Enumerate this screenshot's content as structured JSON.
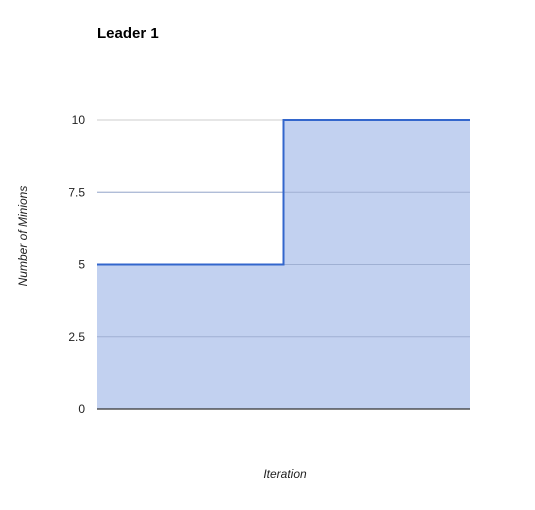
{
  "chart_data": {
    "type": "area",
    "step": true,
    "title": "Leader 1",
    "xlabel": "Iteration",
    "ylabel": "Number of Minions",
    "ylim": [
      0,
      10
    ],
    "yticks": [
      {
        "value": 0,
        "label": "0"
      },
      {
        "value": 2.5,
        "label": "2.5"
      },
      {
        "value": 5,
        "label": "5"
      },
      {
        "value": 7.5,
        "label": "7.5"
      },
      {
        "value": 10,
        "label": "10"
      }
    ],
    "x": [
      0,
      1
    ],
    "series": [
      {
        "values": [
          5,
          10
        ]
      }
    ],
    "grid": true,
    "legend": "none",
    "colors": {
      "line": "#3366cc",
      "fill": "#c2d1f0",
      "grid": "#cccccc",
      "baseline": "#333333"
    }
  }
}
